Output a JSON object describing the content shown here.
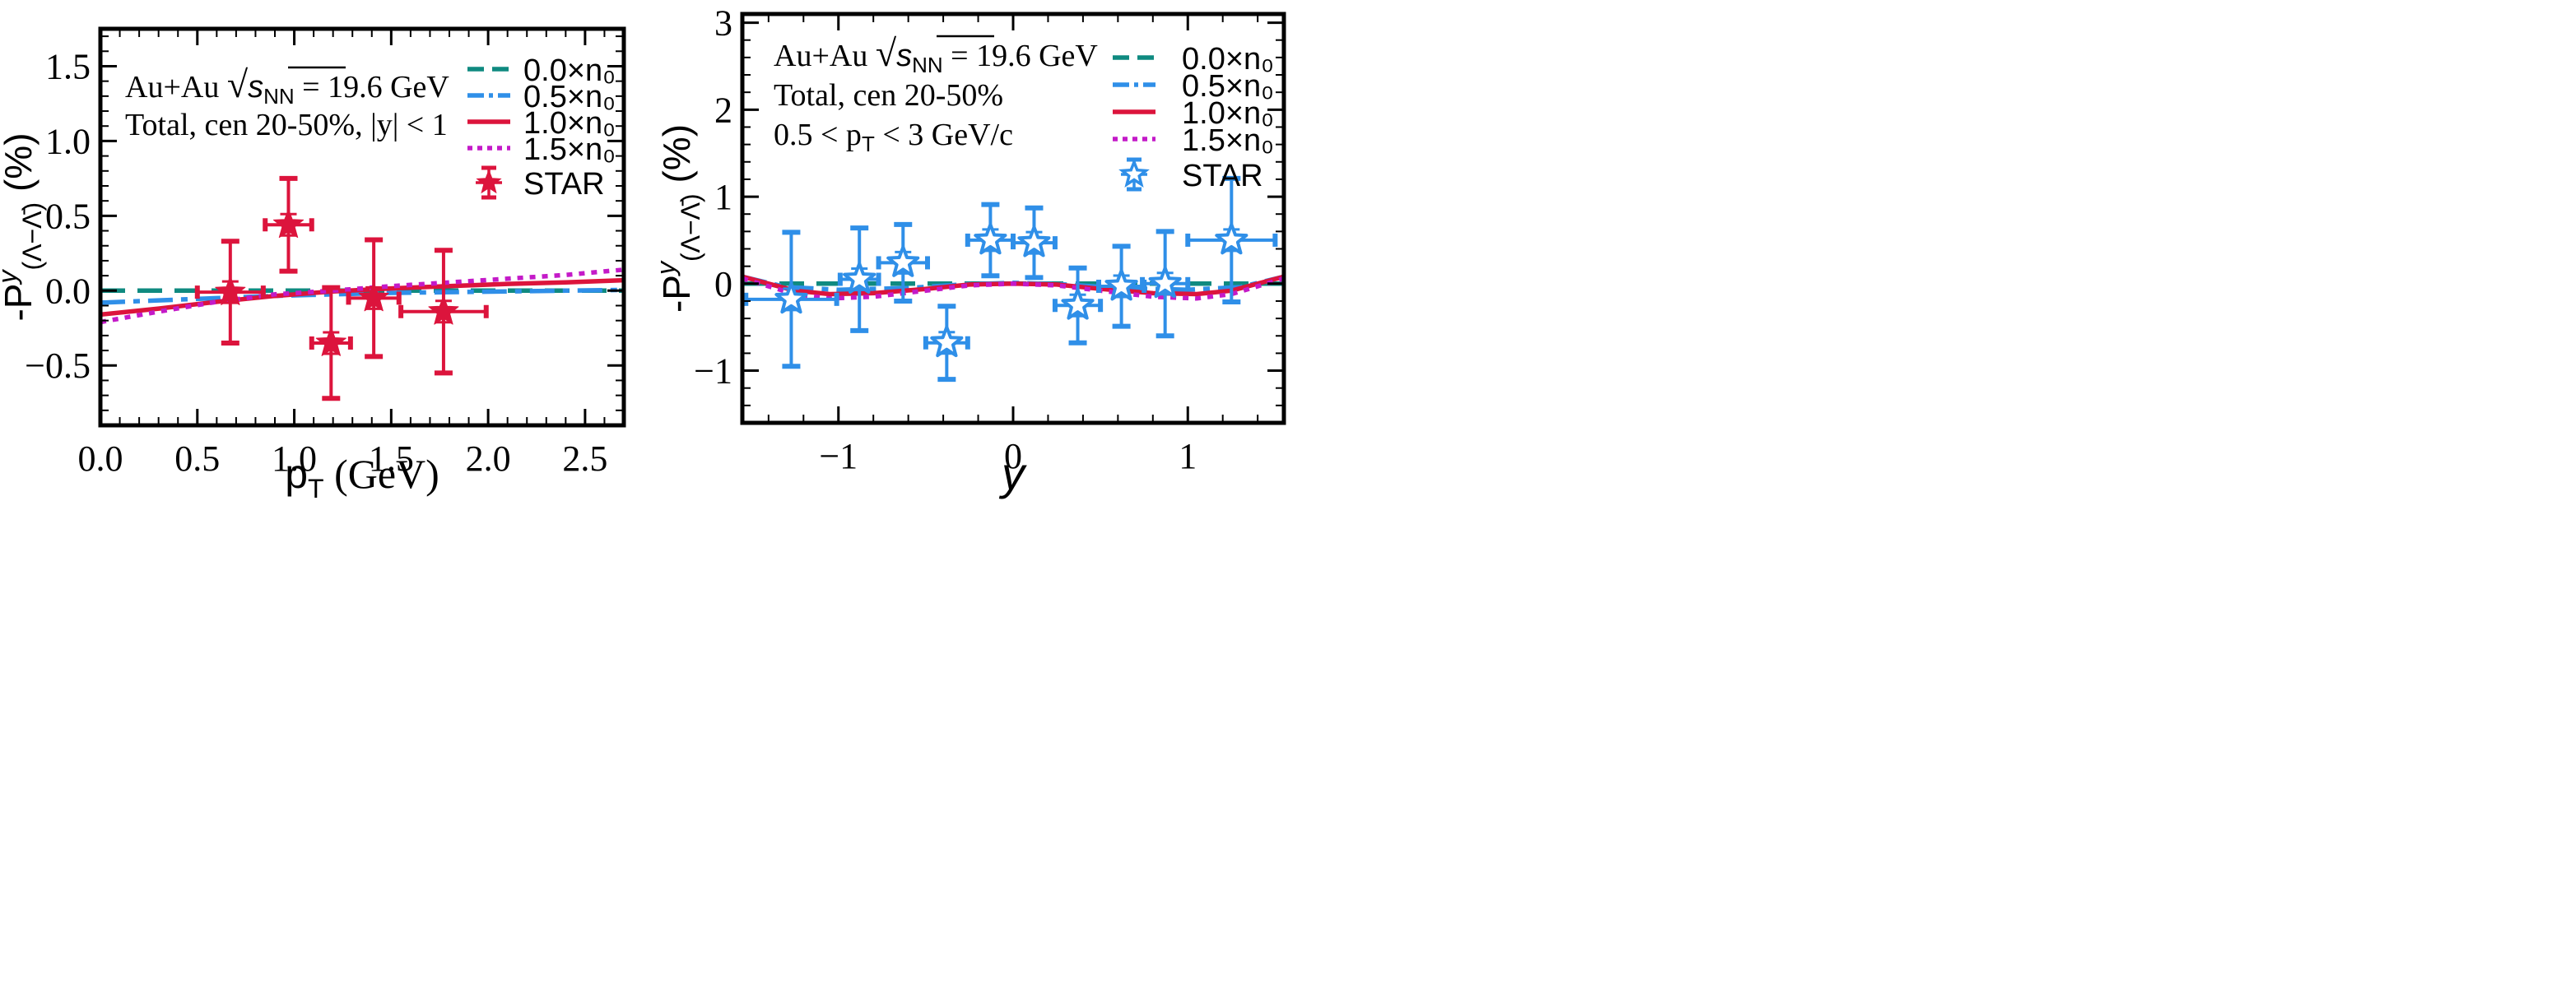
{
  "colors": {
    "n0_00": "#0f8a80",
    "n0_05": "#2f8fe8",
    "n0_10": "#dc143c",
    "n0_15": "#c41ac8",
    "star_left": "#dc143c",
    "star_right": "#2f8fe8",
    "axis": "#000000"
  },
  "chart_data": [
    {
      "type": "line",
      "panel": "left",
      "xlabel_main": "p",
      "xlabel_sub": "T",
      "xlabel_tail": " (GeV)",
      "ylabel_main": "-P",
      "ylabel_sup": "y",
      "ylabel_sub": "(Λ−Λ̄)",
      "ylabel_tail": " (%)",
      "xlim": [
        0.0,
        2.7
      ],
      "ylim": [
        -0.9,
        1.75
      ],
      "xticks": [
        0.0,
        0.5,
        1.0,
        1.5,
        2.0,
        2.5
      ],
      "xtick_labels": [
        "0.0",
        "0.5",
        "1.0",
        "1.5",
        "2.0",
        "2.5"
      ],
      "yticks": [
        -0.5,
        0.0,
        0.5,
        1.0,
        1.5
      ],
      "ytick_labels": [
        "−0.5",
        "0.0",
        "0.5",
        "1.0",
        "1.5"
      ],
      "annotations": [
        {
          "lead": "Au+Au ",
          "sqrt_s": "s",
          "sqrt_sub": "NN",
          "tail": " = 19.6 GeV"
        },
        {
          "text": "Total, cen 20-50%, |y| < 1"
        }
      ],
      "legend": [
        "0.0×n₀",
        "0.5×n₀",
        "1.0×n₀",
        "1.5×n₀",
        "STAR"
      ],
      "series": [
        {
          "name": "0.0×n0",
          "style": "dashed",
          "x": [
            0.0,
            0.5,
            1.0,
            1.5,
            2.0,
            2.5,
            2.7
          ],
          "y": [
            0.0,
            0.0,
            0.0,
            0.0,
            0.0,
            0.0,
            0.0
          ]
        },
        {
          "name": "0.5×n0",
          "style": "dashdot",
          "x": [
            0.0,
            0.3,
            0.6,
            0.9,
            1.2,
            1.5,
            1.8,
            2.1,
            2.4,
            2.7
          ],
          "y": [
            -0.08,
            -0.065,
            -0.05,
            -0.035,
            -0.025,
            -0.015,
            -0.01,
            -0.005,
            0.0,
            0.005
          ]
        },
        {
          "name": "1.0×n0",
          "style": "solid",
          "x": [
            0.0,
            0.3,
            0.6,
            0.9,
            1.2,
            1.5,
            1.8,
            2.1,
            2.4,
            2.7
          ],
          "y": [
            -0.16,
            -0.12,
            -0.075,
            -0.035,
            -0.005,
            0.015,
            0.03,
            0.045,
            0.055,
            0.07
          ]
        },
        {
          "name": "1.5×n0",
          "style": "dotted",
          "x": [
            0.0,
            0.3,
            0.6,
            0.9,
            1.2,
            1.5,
            1.8,
            2.1,
            2.4,
            2.7
          ],
          "y": [
            -0.21,
            -0.14,
            -0.075,
            -0.025,
            0.0,
            0.03,
            0.055,
            0.08,
            0.105,
            0.14
          ]
        }
      ],
      "star": {
        "name": "STAR",
        "marker": "filled-star",
        "points": [
          {
            "x": 0.67,
            "y": -0.01,
            "xerr": 0.17,
            "yerr": 0.34
          },
          {
            "x": 0.97,
            "y": 0.44,
            "xerr": 0.12,
            "yerr": 0.31
          },
          {
            "x": 1.19,
            "y": -0.35,
            "xerr": 0.1,
            "yerr": 0.37
          },
          {
            "x": 1.41,
            "y": -0.05,
            "xerr": 0.13,
            "yerr": 0.39
          },
          {
            "x": 1.77,
            "y": -0.14,
            "xerr": 0.22,
            "yerr": 0.41
          }
        ]
      }
    },
    {
      "type": "line",
      "panel": "right",
      "xlabel_main": "y",
      "ylabel_main": "-P",
      "ylabel_sup": "y",
      "ylabel_sub": "(Λ−Λ̄)",
      "ylabel_tail": " (%)",
      "xlim": [
        -1.55,
        1.55
      ],
      "ylim": [
        -1.6,
        3.1
      ],
      "xticks": [
        -1,
        0,
        1
      ],
      "xtick_labels": [
        "−1",
        "0",
        "1"
      ],
      "yticks": [
        -1,
        0,
        1,
        2,
        3
      ],
      "ytick_labels": [
        "−1",
        "0",
        "1",
        "2",
        "3"
      ],
      "annotations": [
        {
          "lead": "Au+Au ",
          "sqrt_s": "s",
          "sqrt_sub": "NN",
          "tail": " = 19.6 GeV"
        },
        {
          "text": "Total, cen 20-50%"
        },
        {
          "text": "0.5 < p",
          "sub": "T",
          "tail": " < 3 GeV/c"
        }
      ],
      "legend": [
        "0.0×n₀",
        "0.5×n₀",
        "1.0×n₀",
        "1.5×n₀",
        "STAR"
      ],
      "series": [
        {
          "name": "0.0×n0",
          "style": "dashed",
          "x": [
            -1.55,
            -1.0,
            -0.5,
            0.0,
            0.5,
            1.0,
            1.55
          ],
          "y": [
            0.0,
            0.0,
            0.0,
            0.0,
            0.0,
            0.0,
            0.0
          ]
        },
        {
          "name": "0.5×n0",
          "style": "dashdot",
          "x": [
            -1.55,
            -1.3,
            -1.0,
            -0.6,
            -0.3,
            0.0,
            0.3,
            0.6,
            1.0,
            1.3,
            1.55
          ],
          "y": [
            0.08,
            -0.04,
            -0.07,
            -0.05,
            -0.01,
            0.01,
            -0.01,
            -0.05,
            -0.07,
            -0.04,
            0.08
          ]
        },
        {
          "name": "1.0×n0",
          "style": "solid",
          "x": [
            -1.55,
            -1.4,
            -1.25,
            -1.05,
            -0.8,
            -0.5,
            -0.25,
            0.0,
            0.25,
            0.5,
            0.8,
            1.05,
            1.25,
            1.4,
            1.55
          ],
          "y": [
            0.08,
            0.0,
            -0.08,
            -0.12,
            -0.11,
            -0.06,
            -0.01,
            0.0,
            -0.01,
            -0.06,
            -0.11,
            -0.12,
            -0.08,
            0.0,
            0.08
          ]
        },
        {
          "name": "1.5×n0",
          "style": "dotted",
          "x": [
            -1.55,
            -1.4,
            -1.25,
            -1.05,
            -0.8,
            -0.5,
            -0.25,
            0.0,
            0.25,
            0.5,
            0.8,
            1.05,
            1.25,
            1.4,
            1.55
          ],
          "y": [
            0.06,
            -0.03,
            -0.12,
            -0.17,
            -0.15,
            -0.08,
            -0.02,
            0.0,
            -0.02,
            -0.08,
            -0.15,
            -0.17,
            -0.12,
            -0.03,
            0.06
          ]
        }
      ],
      "star": {
        "name": "STAR",
        "marker": "open-star",
        "points": [
          {
            "x": -1.27,
            "y": -0.18,
            "xerr": 0.26,
            "yerr": 0.77
          },
          {
            "x": -0.88,
            "y": 0.05,
            "xerr": 0.11,
            "yerr": 0.59
          },
          {
            "x": -0.63,
            "y": 0.24,
            "xerr": 0.14,
            "yerr": 0.44
          },
          {
            "x": -0.38,
            "y": -0.68,
            "xerr": 0.12,
            "yerr": 0.42
          },
          {
            "x": -0.13,
            "y": 0.5,
            "xerr": 0.13,
            "yerr": 0.41
          },
          {
            "x": 0.12,
            "y": 0.47,
            "xerr": 0.12,
            "yerr": 0.4
          },
          {
            "x": 0.37,
            "y": -0.25,
            "xerr": 0.13,
            "yerr": 0.43
          },
          {
            "x": 0.62,
            "y": -0.03,
            "xerr": 0.13,
            "yerr": 0.46
          },
          {
            "x": 0.87,
            "y": 0.0,
            "xerr": 0.13,
            "yerr": 0.6
          },
          {
            "x": 1.25,
            "y": 0.5,
            "xerr": 0.25,
            "yerr": 0.71
          }
        ]
      }
    }
  ]
}
